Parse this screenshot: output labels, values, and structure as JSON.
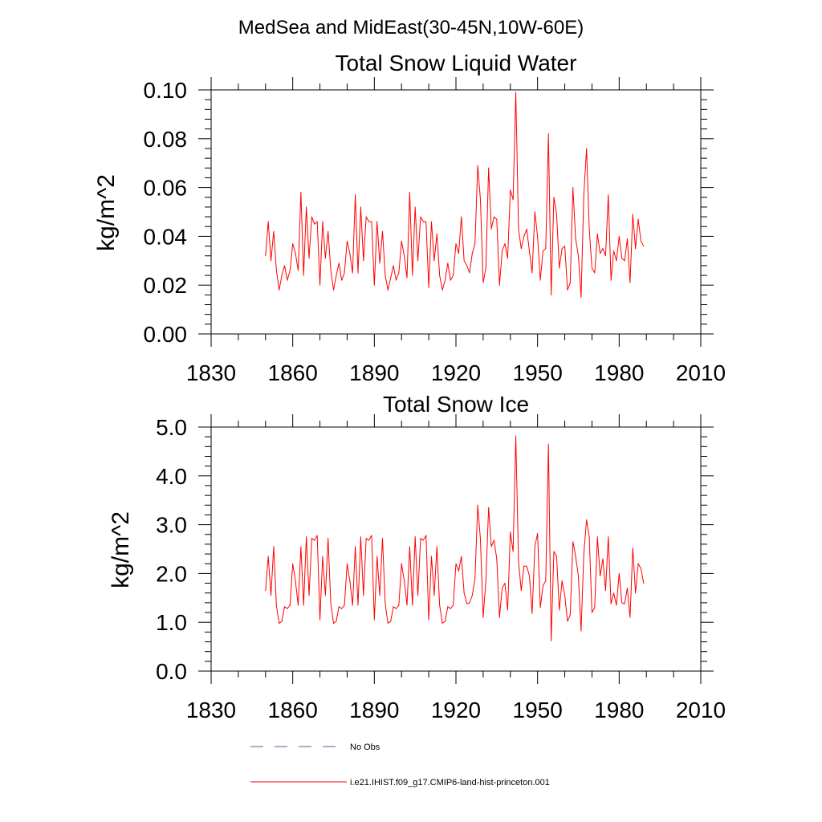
{
  "suptitle": "MedSea and MidEast(30-45N,10W-60E)",
  "colors": {
    "series": "#ff0000",
    "obs": "#5a5a8c",
    "axis": "#000000"
  },
  "legend": [
    {
      "label": "No Obs",
      "style": "dashed",
      "color": "#5a5a8c"
    },
    {
      "label": "i.e21.IHIST.f09_g17.CMIP6-land-hist-princeton.001",
      "style": "solid",
      "color": "#ff0000"
    }
  ],
  "chart_data": [
    {
      "type": "line",
      "title": "Total Snow Liquid Water",
      "xlabel": "",
      "ylabel": "kg/m^2",
      "xlim": [
        1830,
        2010
      ],
      "ylim": [
        0.0,
        0.1
      ],
      "xticks": [
        "1830",
        "1860",
        "1890",
        "1920",
        "1950",
        "1980",
        "2010"
      ],
      "yticks": [
        "0.00",
        "0.02",
        "0.04",
        "0.06",
        "0.08",
        "0.10"
      ],
      "x_start": 1850,
      "x_step": 1,
      "series": [
        {
          "name": "i.e21.IHIST.f09_g17.CMIP6-land-hist-princeton.001",
          "values": [
            0.032,
            0.046,
            0.03,
            0.042,
            0.026,
            0.018,
            0.024,
            0.028,
            0.022,
            0.026,
            0.037,
            0.033,
            0.026,
            0.058,
            0.024,
            0.052,
            0.031,
            0.048,
            0.045,
            0.046,
            0.02,
            0.046,
            0.031,
            0.042,
            0.026,
            0.018,
            0.024,
            0.029,
            0.022,
            0.025,
            0.038,
            0.033,
            0.025,
            0.057,
            0.025,
            0.052,
            0.03,
            0.048,
            0.046,
            0.046,
            0.02,
            0.046,
            0.029,
            0.042,
            0.024,
            0.018,
            0.023,
            0.028,
            0.022,
            0.025,
            0.038,
            0.032,
            0.023,
            0.058,
            0.024,
            0.052,
            0.03,
            0.048,
            0.046,
            0.046,
            0.019,
            0.046,
            0.03,
            0.041,
            0.024,
            0.018,
            0.022,
            0.029,
            0.022,
            0.024,
            0.037,
            0.033,
            0.048,
            0.03,
            0.028,
            0.025,
            0.033,
            0.037,
            0.069,
            0.055,
            0.021,
            0.027,
            0.068,
            0.043,
            0.048,
            0.047,
            0.02,
            0.034,
            0.037,
            0.031,
            0.059,
            0.055,
            0.099,
            0.043,
            0.035,
            0.04,
            0.043,
            0.034,
            0.025,
            0.05,
            0.04,
            0.022,
            0.034,
            0.035,
            0.082,
            0.016,
            0.056,
            0.049,
            0.027,
            0.035,
            0.036,
            0.018,
            0.021,
            0.06,
            0.039,
            0.032,
            0.015,
            0.057,
            0.076,
            0.043,
            0.027,
            0.025,
            0.041,
            0.033,
            0.035,
            0.032,
            0.057,
            0.022,
            0.034,
            0.03,
            0.04,
            0.031,
            0.03,
            0.039,
            0.021,
            0.049,
            0.035,
            0.047,
            0.038,
            0.036
          ]
        }
      ]
    },
    {
      "type": "line",
      "title": "Total Snow Ice",
      "xlabel": "",
      "ylabel": "kg/m^2",
      "xlim": [
        1830,
        2010
      ],
      "ylim": [
        0.0,
        5.0
      ],
      "xticks": [
        "1830",
        "1860",
        "1890",
        "1920",
        "1950",
        "1980",
        "2010"
      ],
      "yticks": [
        "0.0",
        "1.0",
        "2.0",
        "3.0",
        "4.0",
        "5.0"
      ],
      "x_start": 1850,
      "x_step": 1,
      "series": [
        {
          "name": "i.e21.IHIST.f09_g17.CMIP6-land-hist-princeton.001",
          "values": [
            1.65,
            2.35,
            1.55,
            2.55,
            1.35,
            0.98,
            1.02,
            1.32,
            1.28,
            1.35,
            2.2,
            1.85,
            1.35,
            2.55,
            1.35,
            2.75,
            1.55,
            2.72,
            2.68,
            2.78,
            1.05,
            2.35,
            1.55,
            2.72,
            1.38,
            0.98,
            1.02,
            1.32,
            1.28,
            1.35,
            2.2,
            1.85,
            1.35,
            2.55,
            1.35,
            2.75,
            1.55,
            2.72,
            2.68,
            2.78,
            1.05,
            2.35,
            1.55,
            2.72,
            1.38,
            0.98,
            1.02,
            1.32,
            1.28,
            1.35,
            2.2,
            1.85,
            1.35,
            2.55,
            1.35,
            2.75,
            1.55,
            2.72,
            2.68,
            2.78,
            1.05,
            2.35,
            1.55,
            2.55,
            1.35,
            0.98,
            1.02,
            1.32,
            1.28,
            1.35,
            2.2,
            2.05,
            2.35,
            1.6,
            1.38,
            1.4,
            1.55,
            1.9,
            3.4,
            2.7,
            1.1,
            1.85,
            3.35,
            2.55,
            2.68,
            2.3,
            1.1,
            1.7,
            1.8,
            1.25,
            2.85,
            2.45,
            4.82,
            2.25,
            1.65,
            2.15,
            2.15,
            1.95,
            1.18,
            2.55,
            2.82,
            1.3,
            1.75,
            1.85,
            4.65,
            0.62,
            2.45,
            2.35,
            1.25,
            1.85,
            1.55,
            1.02,
            1.15,
            2.65,
            2.35,
            1.95,
            0.82,
            2.4,
            3.1,
            2.75,
            1.2,
            1.3,
            2.75,
            1.95,
            2.3,
            1.65,
            2.75,
            1.38,
            1.6,
            1.35,
            2.0,
            1.4,
            1.38,
            1.7,
            1.1,
            2.52,
            1.6,
            2.2,
            2.1,
            1.8
          ]
        }
      ]
    }
  ]
}
